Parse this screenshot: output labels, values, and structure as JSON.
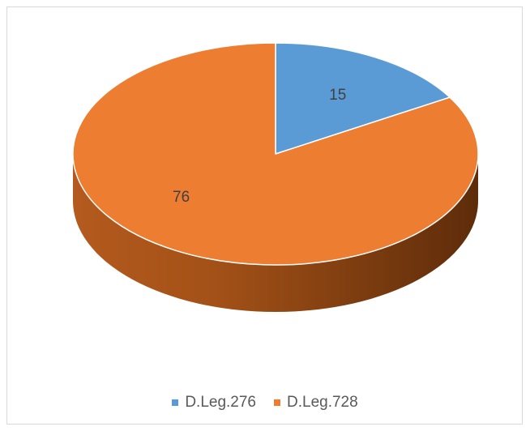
{
  "chart_data": {
    "type": "pie",
    "style": "3d",
    "series": [
      {
        "values": [
          15,
          76
        ]
      }
    ],
    "categories": [
      "D.Leg.276",
      "D.Leg.728"
    ],
    "data_labels": [
      "15",
      "76"
    ],
    "colors": {
      "D.Leg.276": "#5b9bd5",
      "D.Leg.728": "#ed7d31"
    },
    "legend_position": "bottom",
    "title": ""
  }
}
